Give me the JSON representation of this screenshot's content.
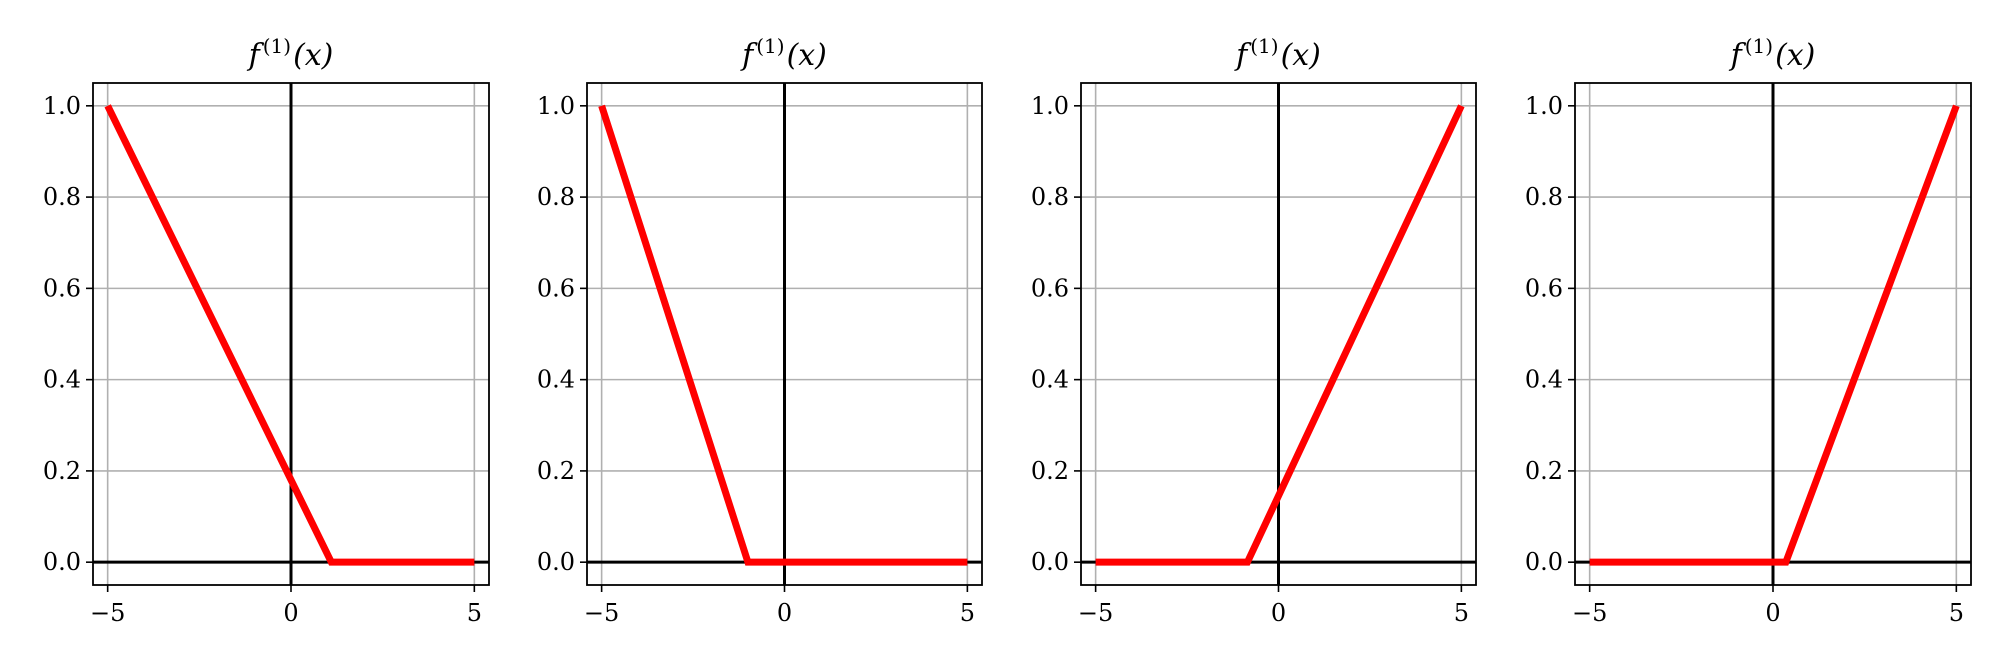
{
  "chart_data": [
    {
      "type": "line",
      "title": "f^{(1)}(x)",
      "title_parts": {
        "base": "f",
        "sup": "(1)",
        "arg": "(x)"
      },
      "xlim": [
        -5.4,
        5.4
      ],
      "ylim": [
        -0.05,
        1.05
      ],
      "xticks": [
        -5,
        0,
        5
      ],
      "xtick_labels": [
        "−5",
        "0",
        "5"
      ],
      "yticks": [
        0.0,
        0.2,
        0.4,
        0.6,
        0.8,
        1.0
      ],
      "ytick_labels": [
        "0.0",
        "0.2",
        "0.4",
        "0.6",
        "0.8",
        "1.0"
      ],
      "grid": true,
      "reference_lines": {
        "x": 0,
        "y": 0,
        "color": "#000000"
      },
      "series": [
        {
          "color": "#ff0000",
          "x": [
            -5.0,
            1.1,
            5.0
          ],
          "y": [
            1.0,
            0.0,
            0.0
          ]
        }
      ]
    },
    {
      "type": "line",
      "title": "f^{(1)}(x)",
      "title_parts": {
        "base": "f",
        "sup": "(1)",
        "arg": "(x)"
      },
      "xlim": [
        -5.4,
        5.4
      ],
      "ylim": [
        -0.05,
        1.05
      ],
      "xticks": [
        -5,
        0,
        5
      ],
      "xtick_labels": [
        "−5",
        "0",
        "5"
      ],
      "yticks": [
        0.0,
        0.2,
        0.4,
        0.6,
        0.8,
        1.0
      ],
      "ytick_labels": [
        "0.0",
        "0.2",
        "0.4",
        "0.6",
        "0.8",
        "1.0"
      ],
      "grid": true,
      "reference_lines": {
        "x": 0,
        "y": 0,
        "color": "#000000"
      },
      "series": [
        {
          "color": "#ff0000",
          "x": [
            -5.0,
            -1.0,
            5.0
          ],
          "y": [
            1.0,
            0.0,
            0.0
          ]
        }
      ]
    },
    {
      "type": "line",
      "title": "f^{(1)}(x)",
      "title_parts": {
        "base": "f",
        "sup": "(1)",
        "arg": "(x)"
      },
      "xlim": [
        -5.4,
        5.4
      ],
      "ylim": [
        -0.05,
        1.05
      ],
      "xticks": [
        -5,
        0,
        5
      ],
      "xtick_labels": [
        "−5",
        "0",
        "5"
      ],
      "yticks": [
        0.0,
        0.2,
        0.4,
        0.6,
        0.8,
        1.0
      ],
      "ytick_labels": [
        "0.0",
        "0.2",
        "0.4",
        "0.6",
        "0.8",
        "1.0"
      ],
      "grid": true,
      "reference_lines": {
        "x": 0,
        "y": 0,
        "color": "#000000"
      },
      "series": [
        {
          "color": "#ff0000",
          "x": [
            -5.0,
            -0.85,
            5.0
          ],
          "y": [
            0.0,
            0.0,
            1.0
          ]
        }
      ]
    },
    {
      "type": "line",
      "title": "f^{(1)}(x)",
      "title_parts": {
        "base": "f",
        "sup": "(1)",
        "arg": "(x)"
      },
      "xlim": [
        -5.4,
        5.4
      ],
      "ylim": [
        -0.05,
        1.05
      ],
      "xticks": [
        -5,
        0,
        5
      ],
      "xtick_labels": [
        "−5",
        "0",
        "5"
      ],
      "yticks": [
        0.0,
        0.2,
        0.4,
        0.6,
        0.8,
        1.0
      ],
      "ytick_labels": [
        "0.0",
        "0.2",
        "0.4",
        "0.6",
        "0.8",
        "1.0"
      ],
      "grid": true,
      "reference_lines": {
        "x": 0,
        "y": 0,
        "color": "#000000"
      },
      "series": [
        {
          "color": "#ff0000",
          "x": [
            -5.0,
            0.35,
            5.0
          ],
          "y": [
            0.0,
            0.0,
            1.0
          ]
        }
      ]
    }
  ]
}
